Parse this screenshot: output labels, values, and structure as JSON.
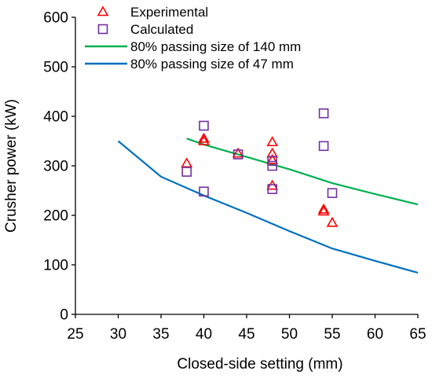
{
  "chart_data": {
    "type": "scatter",
    "title": "",
    "xlabel": "Closed-side setting (mm)",
    "ylabel": "Crusher power (kW)",
    "xlim": [
      25,
      65
    ],
    "ylim": [
      0,
      600
    ],
    "x_ticks": [
      25,
      30,
      35,
      40,
      45,
      50,
      55,
      60,
      65
    ],
    "y_ticks": [
      0,
      100,
      200,
      300,
      400,
      500,
      600
    ],
    "grid": false,
    "legend_position": "top-left",
    "series": [
      {
        "name": "Experimental",
        "kind": "scatter",
        "marker": "triangle-open",
        "color": "#ff0000",
        "points": [
          {
            "x": 38,
            "y": 305
          },
          {
            "x": 40,
            "y": 355
          },
          {
            "x": 40,
            "y": 350
          },
          {
            "x": 44,
            "y": 325
          },
          {
            "x": 48,
            "y": 348
          },
          {
            "x": 48,
            "y": 325
          },
          {
            "x": 48,
            "y": 312
          },
          {
            "x": 48,
            "y": 260
          },
          {
            "x": 54,
            "y": 212
          },
          {
            "x": 54,
            "y": 208
          },
          {
            "x": 55,
            "y": 185
          }
        ]
      },
      {
        "name": "Calculated",
        "kind": "scatter",
        "marker": "square-open",
        "color": "#7030a0",
        "points": [
          {
            "x": 38,
            "y": 288
          },
          {
            "x": 40,
            "y": 381
          },
          {
            "x": 40,
            "y": 248
          },
          {
            "x": 44,
            "y": 323
          },
          {
            "x": 48,
            "y": 310
          },
          {
            "x": 48,
            "y": 300
          },
          {
            "x": 48,
            "y": 253
          },
          {
            "x": 54,
            "y": 406
          },
          {
            "x": 54,
            "y": 340
          },
          {
            "x": 55,
            "y": 245
          }
        ]
      },
      {
        "name": "80% passing size of 140 mm",
        "kind": "line",
        "color": "#00b050",
        "points": [
          {
            "x": 38,
            "y": 355
          },
          {
            "x": 40,
            "y": 343
          },
          {
            "x": 45,
            "y": 318
          },
          {
            "x": 50,
            "y": 293
          },
          {
            "x": 55,
            "y": 265
          },
          {
            "x": 60,
            "y": 243
          },
          {
            "x": 65,
            "y": 222
          }
        ]
      },
      {
        "name": "80% passing size of 47 mm",
        "kind": "line",
        "color": "#0070c0",
        "points": [
          {
            "x": 30,
            "y": 350
          },
          {
            "x": 35,
            "y": 278
          },
          {
            "x": 40,
            "y": 240
          },
          {
            "x": 45,
            "y": 205
          },
          {
            "x": 50,
            "y": 168
          },
          {
            "x": 55,
            "y": 133
          },
          {
            "x": 60,
            "y": 108
          },
          {
            "x": 65,
            "y": 84
          }
        ]
      }
    ]
  }
}
